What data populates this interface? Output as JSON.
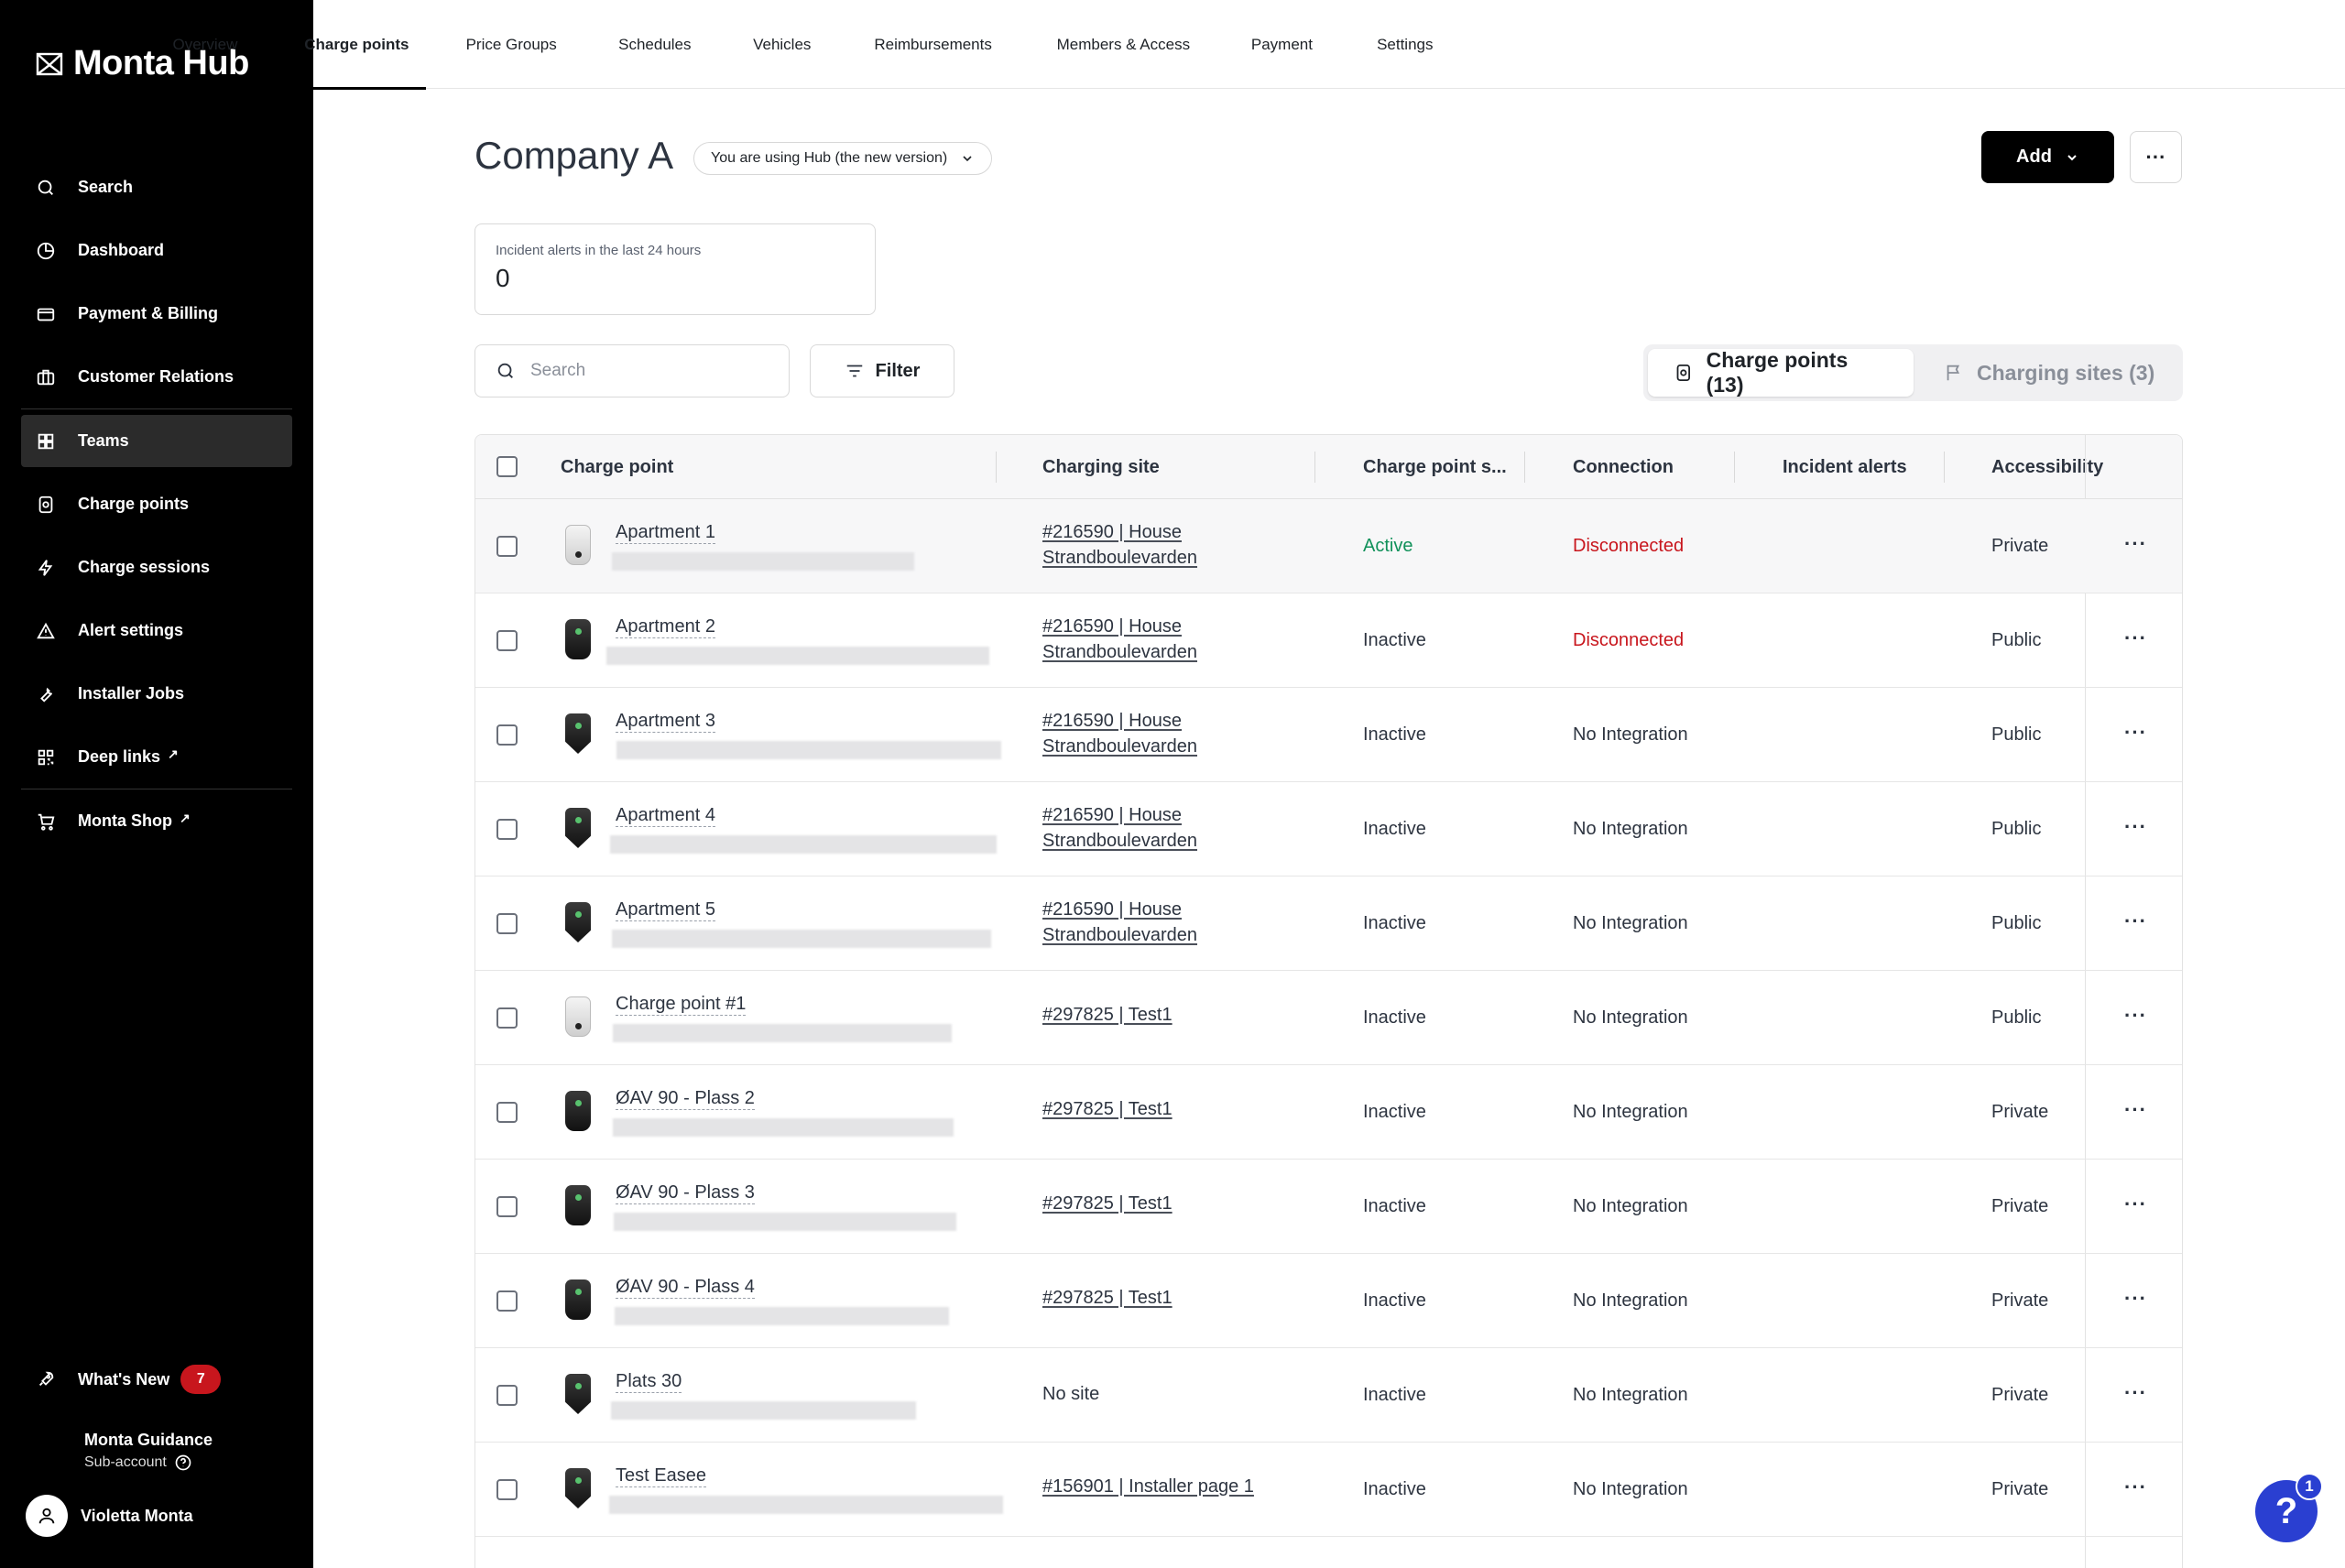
{
  "app": {
    "brand": "Monta Hub"
  },
  "sidebar": {
    "items": [
      {
        "label": "Search",
        "icon": "search-icon"
      },
      {
        "label": "Dashboard",
        "icon": "pie-chart-icon"
      },
      {
        "label": "Payment & Billing",
        "icon": "credit-card-icon"
      },
      {
        "label": "Customer Relations",
        "icon": "briefcase-icon"
      },
      {
        "label": "Teams",
        "icon": "grid-icon",
        "active": true
      },
      {
        "label": "Charge points",
        "icon": "charger-icon"
      },
      {
        "label": "Charge sessions",
        "icon": "bolt-icon"
      },
      {
        "label": "Alert settings",
        "icon": "alert-triangle-icon"
      },
      {
        "label": "Installer Jobs",
        "icon": "wrench-icon"
      },
      {
        "label": "Deep links",
        "icon": "qr-code-icon",
        "external": "↗"
      },
      {
        "label": "Monta Shop",
        "icon": "cart-icon",
        "external": "↗"
      }
    ],
    "whats_new": {
      "label": "What's New",
      "count": "7"
    },
    "guidance": {
      "title": "Monta Guidance",
      "subtitle": "Sub-account"
    },
    "user": {
      "name": "Violetta Monta"
    }
  },
  "tabs": [
    "Overview",
    "Charge points",
    "Price Groups",
    "Schedules",
    "Vehicles",
    "Reimbursements",
    "Members & Access",
    "Payment",
    "Settings"
  ],
  "header": {
    "title": "Company A",
    "version_pill": "You are using Hub (the new version)",
    "add_label": "Add",
    "more_label": "···"
  },
  "incident_card": {
    "label": "Incident alerts in the last 24 hours",
    "value": "0"
  },
  "toolbar": {
    "search_placeholder": "Search",
    "filter_label": "Filter",
    "segment_charge_points": "Charge points (13)",
    "segment_charging_sites": "Charging sites (3)"
  },
  "table": {
    "columns": [
      "Charge point",
      "Charging site",
      "Charge point s...",
      "Connection",
      "Incident alerts",
      "Accessibility"
    ],
    "rows": [
      {
        "name": "Apartment 1",
        "site1": "#216590 | House",
        "site2": "Strandboulevarden",
        "status": "Active",
        "connection": "Disconnected",
        "access": "Private",
        "icon": "light"
      },
      {
        "name": "Apartment 2",
        "site1": "#216590 | House",
        "site2": "Strandboulevarden",
        "status": "Inactive",
        "connection": "Disconnected",
        "access": "Public",
        "icon": "dark"
      },
      {
        "name": "Apartment 3",
        "site1": "#216590 | House",
        "site2": "Strandboulevarden",
        "status": "Inactive",
        "connection": "No Integration",
        "access": "Public",
        "icon": "shield"
      },
      {
        "name": "Apartment 4",
        "site1": "#216590 | House",
        "site2": "Strandboulevarden",
        "status": "Inactive",
        "connection": "No Integration",
        "access": "Public",
        "icon": "shield"
      },
      {
        "name": "Apartment 5",
        "site1": "#216590 | House",
        "site2": "Strandboulevarden",
        "status": "Inactive",
        "connection": "No Integration",
        "access": "Public",
        "icon": "shield"
      },
      {
        "name": "Charge point #1",
        "site1": "#297825 | Test1",
        "site2": "",
        "status": "Inactive",
        "connection": "No Integration",
        "access": "Public",
        "icon": "light"
      },
      {
        "name": "ØAV 90 - Plass 2",
        "site1": "#297825 | Test1",
        "site2": "",
        "status": "Inactive",
        "connection": "No Integration",
        "access": "Private",
        "icon": "dark"
      },
      {
        "name": "ØAV 90 - Plass 3",
        "site1": "#297825 | Test1",
        "site2": "",
        "status": "Inactive",
        "connection": "No Integration",
        "access": "Private",
        "icon": "dark"
      },
      {
        "name": "ØAV 90 - Plass 4",
        "site1": "#297825 | Test1",
        "site2": "",
        "status": "Inactive",
        "connection": "No Integration",
        "access": "Private",
        "icon": "dark"
      },
      {
        "name": "Plats 30",
        "site1": "",
        "site2": "",
        "site_plain": "No site",
        "status": "Inactive",
        "connection": "No Integration",
        "access": "Private",
        "icon": "shield"
      },
      {
        "name": "Test Easee",
        "site1": "#156901 | Installer page 1",
        "site2": "",
        "status": "Inactive",
        "connection": "No Integration",
        "access": "Private",
        "icon": "shield"
      }
    ]
  },
  "help": {
    "label": "?",
    "badge": "1"
  },
  "colors": {
    "active_status": "#11915a",
    "disconnected": "#c8161d",
    "badge": "#c8161d",
    "help": "#2a3fd1"
  }
}
